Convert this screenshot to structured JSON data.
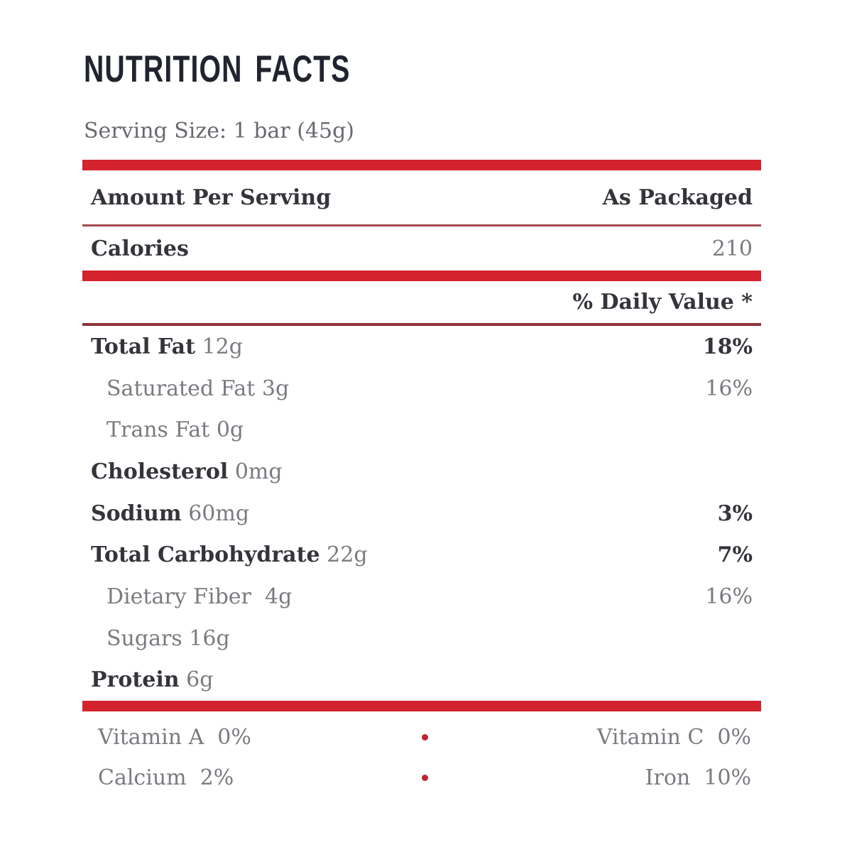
{
  "label": {
    "title": "NUTRITION FACTS",
    "serving_size": "Serving Size: 1 bar (45g)",
    "header": {
      "left": "Amount Per Serving",
      "right": "As Packaged"
    },
    "calories": {
      "label": "Calories",
      "value": "210"
    },
    "daily_value_header": "% Daily Value *",
    "nutrients": [
      {
        "name": "Total Fat",
        "amount": "12g",
        "dv": "18%"
      },
      {
        "name": "Saturated Fat",
        "amount": "3g",
        "dv": "16%"
      },
      {
        "name": "Trans Fat",
        "amount": "0g",
        "dv": ""
      },
      {
        "name": "Cholesterol",
        "amount": "0mg",
        "dv": ""
      },
      {
        "name": "Sodium",
        "amount": "60mg",
        "dv": "3%"
      },
      {
        "name": "Total Carbohydrate",
        "amount": "22g",
        "dv": "7%"
      },
      {
        "name": "Dietary Fiber",
        "amount": " 4g",
        "dv": "16%"
      },
      {
        "name": "Sugars",
        "amount": "16g",
        "dv": ""
      },
      {
        "name": "Protein",
        "amount": "6g",
        "dv": ""
      }
    ],
    "micronutrients": [
      {
        "left": "Vitamin A  0%",
        "right": "Vitamin C  0%"
      },
      {
        "left": "Calcium  2%",
        "right": "Iron  10%"
      }
    ],
    "colors": {
      "accent_red": "#D2232E",
      "rule_red_thin": "#A4494E",
      "rule_red_dark": "#8D3338",
      "text_dark": "#34353B",
      "text_gray": "#7A7B80"
    }
  }
}
